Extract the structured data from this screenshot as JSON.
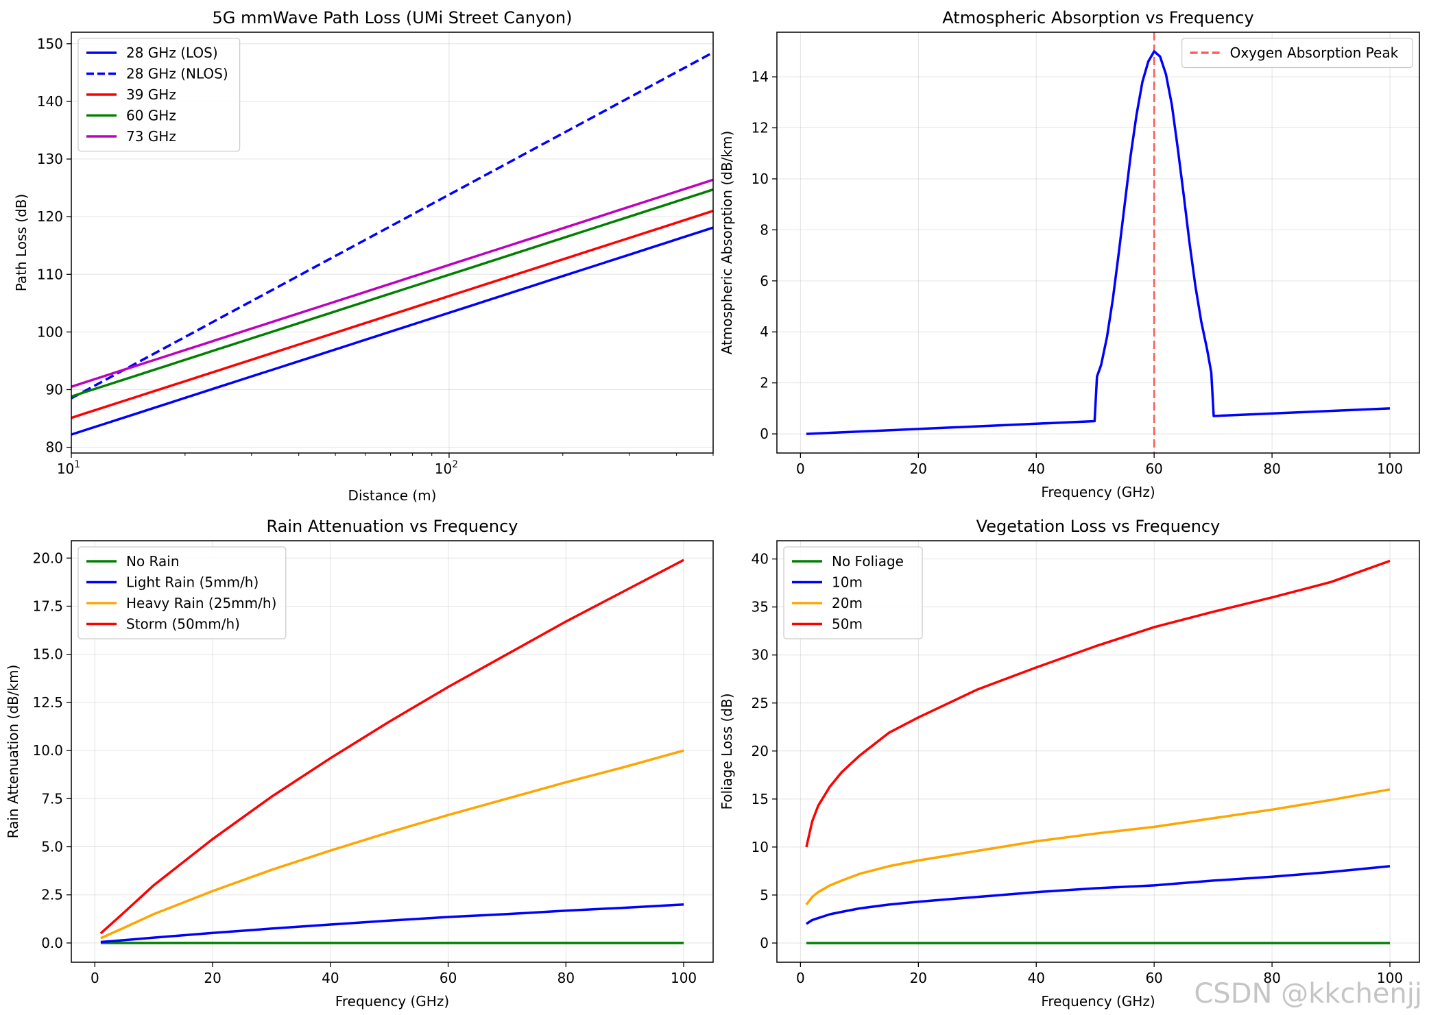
{
  "figure": {
    "watermark": "CSDN @kkchenjj"
  },
  "chart_data": [
    {
      "type": "line",
      "title": "5G mmWave Path Loss (UMi Street Canyon)",
      "xlabel": "Distance (m)",
      "ylabel": "Path Loss (dB)",
      "xscale": "log",
      "xlim": [
        10,
        500
      ],
      "ylim": [
        79,
        152
      ],
      "x_ticks": [
        10,
        100
      ],
      "x_tick_labels": [
        [
          "10",
          "1"
        ],
        [
          "10",
          "2"
        ]
      ],
      "y_ticks": [
        80,
        90,
        100,
        110,
        120,
        130,
        140,
        150
      ],
      "y_tick_labels": [
        "80",
        "90",
        "100",
        "110",
        "120",
        "130",
        "140",
        "150"
      ],
      "legend_position": "upper-left",
      "series": [
        {
          "name": "28 GHz (LOS)",
          "color": "#0000ff",
          "dash": "solid",
          "x": [
            10,
            500
          ],
          "y": [
            82.2,
            118.1
          ]
        },
        {
          "name": "28 GHz (NLOS)",
          "color": "#0000ff",
          "dash": "dashed",
          "x": [
            10,
            500
          ],
          "y": [
            88.5,
            148.5
          ]
        },
        {
          "name": "39 GHz",
          "color": "#ff0000",
          "dash": "solid",
          "x": [
            10,
            500
          ],
          "y": [
            85.1,
            121.0
          ]
        },
        {
          "name": "60 GHz",
          "color": "#008000",
          "dash": "solid",
          "x": [
            10,
            500
          ],
          "y": [
            88.8,
            124.7
          ]
        },
        {
          "name": "73 GHz",
          "color": "#bf00bf",
          "dash": "solid",
          "x": [
            10,
            500
          ],
          "y": [
            90.5,
            126.4
          ]
        }
      ]
    },
    {
      "type": "line",
      "title": "Atmospheric Absorption vs Frequency",
      "xlabel": "Frequency (GHz)",
      "ylabel": "Atmospheric Absorption (dB/km)",
      "xlim": [
        -4,
        105
      ],
      "ylim": [
        -0.75,
        15.75
      ],
      "x_ticks": [
        0,
        20,
        40,
        60,
        80,
        100
      ],
      "x_tick_labels": [
        "0",
        "20",
        "40",
        "60",
        "80",
        "100"
      ],
      "y_ticks": [
        0,
        2,
        4,
        6,
        8,
        10,
        12,
        14
      ],
      "y_tick_labels": [
        "0",
        "2",
        "4",
        "6",
        "8",
        "10",
        "12",
        "14"
      ],
      "legend_position": "upper-right",
      "vlines": [
        {
          "x": 60,
          "name": "Oxygen Absorption Peak",
          "color": "#ff3333",
          "dash": "dashed"
        }
      ],
      "series": [
        {
          "name": "Atmospheric absorption",
          "color": "#0000ff",
          "dash": "solid",
          "in_legend": false,
          "x": [
            1,
            49.9,
            50.3,
            51,
            52,
            53,
            54,
            55,
            56,
            57,
            58,
            59,
            60,
            61,
            62,
            63,
            64,
            65,
            66,
            67,
            68,
            69,
            69.7,
            70.1,
            100
          ],
          "y": [
            0,
            0.5,
            2.25,
            2.7,
            3.8,
            5.3,
            7.1,
            9.0,
            10.9,
            12.5,
            13.8,
            14.6,
            15.0,
            14.8,
            14.1,
            12.9,
            11.2,
            9.4,
            7.5,
            5.8,
            4.4,
            3.3,
            2.4,
            0.7,
            1.0
          ]
        }
      ]
    },
    {
      "type": "line",
      "title": "Rain Attenuation vs Frequency",
      "xlabel": "Frequency (GHz)",
      "ylabel": "Rain Attenuation (dB/km)",
      "xlim": [
        -4,
        105
      ],
      "ylim": [
        -1.0,
        20.9
      ],
      "x_ticks": [
        0,
        20,
        40,
        60,
        80,
        100
      ],
      "x_tick_labels": [
        "0",
        "20",
        "40",
        "60",
        "80",
        "100"
      ],
      "y_ticks": [
        0,
        2.5,
        5,
        7.5,
        10,
        12.5,
        15,
        17.5,
        20
      ],
      "y_tick_labels": [
        "0.0",
        "2.5",
        "5.0",
        "7.5",
        "10.0",
        "12.5",
        "15.0",
        "17.5",
        "20.0"
      ],
      "legend_position": "upper-left",
      "series": [
        {
          "name": "No Rain",
          "color": "#008000",
          "dash": "solid",
          "x": [
            1,
            100
          ],
          "y": [
            0,
            0
          ]
        },
        {
          "name": "Light Rain (5mm/h)",
          "color": "#0000ff",
          "dash": "solid",
          "x": [
            1,
            5,
            10,
            20,
            30,
            40,
            50,
            60,
            70,
            80,
            90,
            100
          ],
          "y": [
            0.05,
            0.15,
            0.28,
            0.52,
            0.75,
            0.96,
            1.16,
            1.35,
            1.5,
            1.68,
            1.83,
            2.0
          ]
        },
        {
          "name": "Heavy Rain (25mm/h)",
          "color": "#ffa500",
          "dash": "solid",
          "x": [
            1,
            5,
            10,
            20,
            30,
            40,
            50,
            60,
            70,
            80,
            90,
            100
          ],
          "y": [
            0.25,
            0.8,
            1.5,
            2.7,
            3.8,
            4.8,
            5.75,
            6.65,
            7.5,
            8.35,
            9.15,
            10.0
          ]
        },
        {
          "name": "Storm (50mm/h)",
          "color": "#ff0000",
          "dash": "solid",
          "x": [
            1,
            5,
            10,
            20,
            30,
            40,
            50,
            60,
            70,
            80,
            90,
            100
          ],
          "y": [
            0.5,
            1.6,
            3.0,
            5.4,
            7.6,
            9.6,
            11.5,
            13.3,
            15.0,
            16.7,
            18.3,
            19.9
          ]
        }
      ]
    },
    {
      "type": "line",
      "title": "Vegetation Loss vs Frequency",
      "xlabel": "Frequency (GHz)",
      "ylabel": "Foliage Loss (dB)",
      "xlim": [
        -4,
        105
      ],
      "ylim": [
        -2.0,
        41.9
      ],
      "x_ticks": [
        0,
        20,
        40,
        60,
        80,
        100
      ],
      "x_tick_labels": [
        "0",
        "20",
        "40",
        "60",
        "80",
        "100"
      ],
      "y_ticks": [
        0,
        5,
        10,
        15,
        20,
        25,
        30,
        35,
        40
      ],
      "y_tick_labels": [
        "0",
        "5",
        "10",
        "15",
        "20",
        "25",
        "30",
        "35",
        "40"
      ],
      "legend_position": "upper-left",
      "series": [
        {
          "name": "No Foliage",
          "color": "#008000",
          "dash": "solid",
          "x": [
            1,
            100
          ],
          "y": [
            0,
            0
          ]
        },
        {
          "name": "10m",
          "color": "#0000ff",
          "dash": "solid",
          "x": [
            1,
            2,
            3,
            5,
            7,
            10,
            15,
            20,
            30,
            40,
            50,
            60,
            70,
            80,
            90,
            100
          ],
          "y": [
            2.0,
            2.4,
            2.6,
            3.0,
            3.25,
            3.6,
            4.0,
            4.3,
            4.8,
            5.3,
            5.7,
            6.0,
            6.5,
            6.9,
            7.4,
            8.0
          ]
        },
        {
          "name": "20m",
          "color": "#ffa500",
          "dash": "solid",
          "x": [
            1,
            2,
            3,
            5,
            7,
            10,
            15,
            20,
            30,
            40,
            50,
            60,
            70,
            80,
            90,
            100
          ],
          "y": [
            4.0,
            4.8,
            5.3,
            6.0,
            6.5,
            7.2,
            8.0,
            8.6,
            9.6,
            10.6,
            11.4,
            12.1,
            13.0,
            13.9,
            14.9,
            16.0
          ]
        },
        {
          "name": "50m",
          "color": "#ff0000",
          "dash": "solid",
          "x": [
            1,
            2,
            3,
            5,
            7,
            10,
            15,
            20,
            30,
            40,
            50,
            60,
            70,
            80,
            90,
            100
          ],
          "y": [
            10.0,
            12.7,
            14.3,
            16.3,
            17.8,
            19.5,
            21.9,
            23.5,
            26.4,
            28.7,
            30.9,
            32.9,
            34.5,
            36.0,
            37.6,
            39.8
          ]
        }
      ]
    }
  ]
}
